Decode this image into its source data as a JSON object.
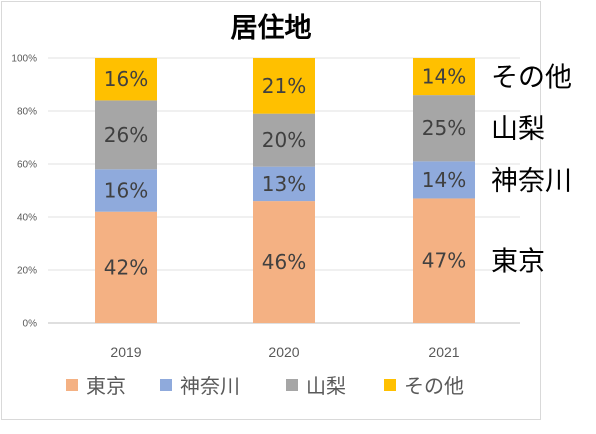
{
  "chart_data": {
    "type": "bar",
    "stacked": true,
    "percent": true,
    "title": "居住地",
    "categories": [
      "2019",
      "2020",
      "2021"
    ],
    "series": [
      {
        "name": "東京",
        "color": "#f4b183",
        "values": [
          42,
          46,
          47
        ],
        "labels": [
          "42%",
          "46%",
          "47%"
        ]
      },
      {
        "name": "神奈川",
        "color": "#8faadc",
        "values": [
          16,
          13,
          14
        ],
        "labels": [
          "16%",
          "13%",
          "14%"
        ]
      },
      {
        "name": "山梨",
        "color": "#a6a6a6",
        "values": [
          26,
          20,
          25
        ],
        "labels": [
          "26%",
          "20%",
          "25%"
        ]
      },
      {
        "name": "その他",
        "color": "#ffc000",
        "values": [
          16,
          21,
          14
        ],
        "labels": [
          "16%",
          "21%",
          "14%"
        ]
      }
    ],
    "yticks": [
      "0%",
      "20%",
      "40%",
      "60%",
      "80%",
      "100%"
    ],
    "ylim": [
      0,
      100
    ],
    "grid": true,
    "legend_position": "bottom"
  }
}
